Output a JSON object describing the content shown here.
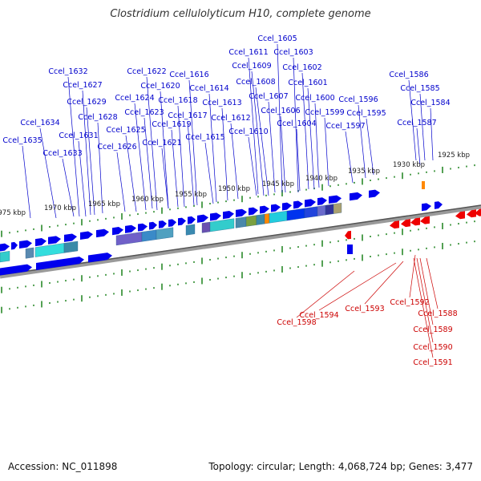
{
  "title": "Clostridium cellulolyticum H10, complete genome",
  "footer": {
    "accession": "Accession: NC_011898",
    "summary": "Topology: circular; Length: 4,068,724 bp; Genes: 3,477"
  },
  "colors": {
    "forward_gene": "#0000ee",
    "reverse_gene": "#ee0000",
    "forward_label": "#0000cc",
    "reverse_label": "#cc0000",
    "tick": "#2a8a2a",
    "backbone": "#777777"
  },
  "ruler_labels": [
    "1975 kbp",
    "1970 kbp",
    "1965 kbp",
    "1960 kbp",
    "1955 kbp",
    "1950 kbp",
    "1945 kbp",
    "1940 kbp",
    "1935 kbp",
    "1930 kbp",
    "1925 kbp"
  ],
  "forward_gene_labels": [
    "Ccel_1605",
    "Ccel_1603",
    "Ccel_1611",
    "Ccel_1602",
    "Ccel_1609",
    "Ccel_1632",
    "Ccel_1622",
    "Ccel_1616",
    "Ccel_1586",
    "Ccel_1608",
    "Ccel_1601",
    "Ccel_1627",
    "Ccel_1620",
    "Ccel_1585",
    "Ccel_1614",
    "Ccel_1607",
    "Ccel_1600",
    "Ccel_1596",
    "Ccel_1624",
    "Ccel_1629",
    "Ccel_1618",
    "Ccel_1613",
    "Ccel_1584",
    "Ccel_1623",
    "Ccel_1606",
    "Ccel_1599",
    "Ccel_1595",
    "Ccel_1628",
    "Ccel_1617",
    "Ccel_1612",
    "Ccel_1634",
    "Ccel_1604",
    "Ccel_1587",
    "Ccel_1619",
    "Ccel_1597",
    "Ccel_1625",
    "Ccel_1610",
    "Ccel_1631",
    "Ccel_1621",
    "Ccel_1615",
    "Ccel_1635",
    "Ccel_1626",
    "Ccel_1633"
  ],
  "reverse_gene_labels": [
    "Ccel_1592",
    "Ccel_1588",
    "Ccel_1598",
    "Ccel_1594",
    "Ccel_1593",
    "Ccel_1589",
    "Ccel_1590",
    "Ccel_1591"
  ]
}
